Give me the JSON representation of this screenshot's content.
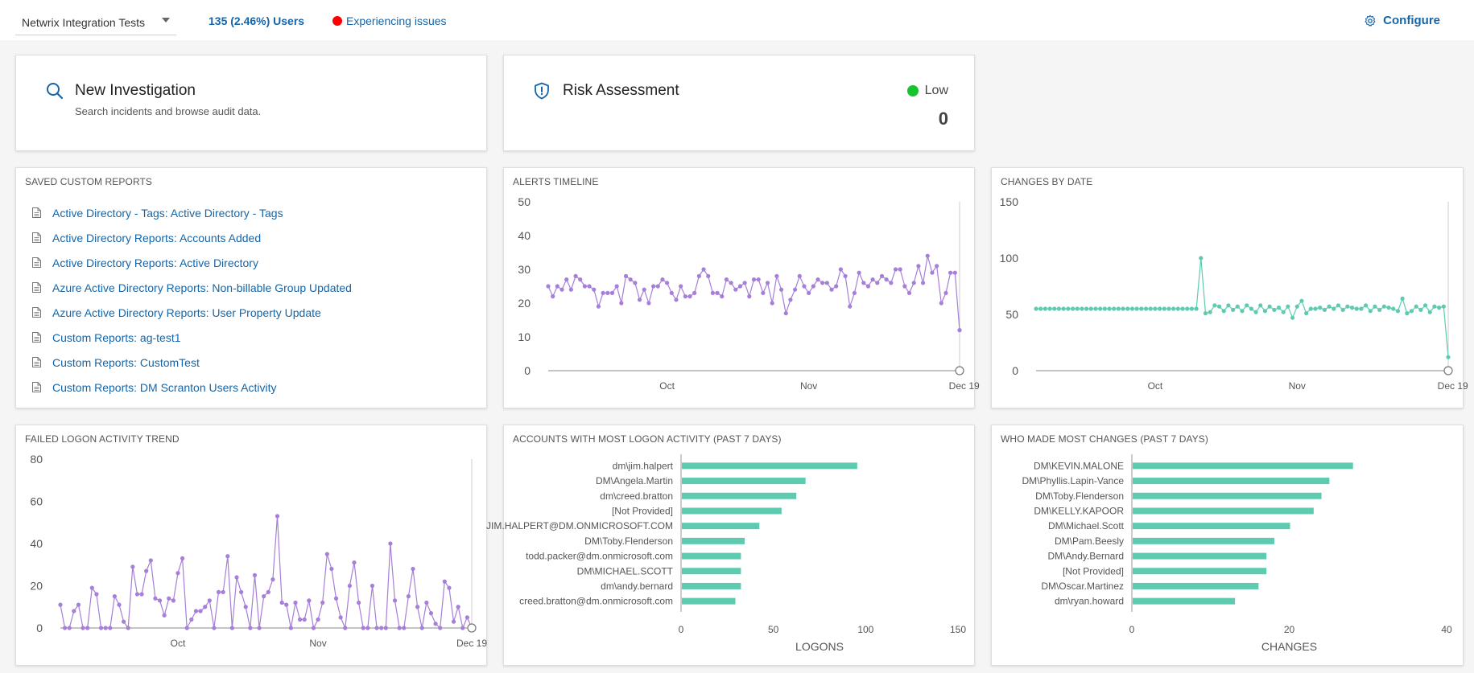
{
  "topbar": {
    "workspace": "Netwrix Integration Tests",
    "users": "135 (2.46%) Users",
    "status": "Experiencing issues",
    "status_color": "#ff0000",
    "configure": "Configure"
  },
  "investigation": {
    "title": "New Investigation",
    "subtitle": "Search incidents and browse audit data.",
    "icon": "search-icon"
  },
  "risk": {
    "title": "Risk Assessment",
    "level": "Low",
    "level_color": "#17c32e",
    "value": "0",
    "icon": "shield-icon"
  },
  "saved_reports": {
    "title": "SAVED CUSTOM REPORTS",
    "items": [
      "Active Directory - Tags: Active Directory - Tags",
      "Active Directory Reports: Accounts Added",
      "Active Directory Reports: Active Directory",
      "Azure Active Directory Reports: Non-billable Group Updated",
      "Azure Active Directory Reports: User Property Update",
      "Custom Reports: ag-test1",
      "Custom Reports: CustomTest",
      "Custom Reports: DM Scranton Users Activity"
    ]
  },
  "chart_data": [
    {
      "id": "alerts",
      "type": "line",
      "title": "ALERTS TIMELINE",
      "color": "#a57fd8",
      "ylim": [
        0,
        50
      ],
      "yticks": [
        0,
        10,
        20,
        30,
        40,
        50
      ],
      "xticks": [
        {
          "label": "Oct",
          "at": 26
        },
        {
          "label": "Nov",
          "at": 57
        },
        {
          "label": "Dec 19",
          "at": 91
        }
      ],
      "values": [
        25,
        22,
        25,
        24,
        27,
        24,
        28,
        27,
        25,
        25,
        24,
        19,
        23,
        23,
        23,
        25,
        20,
        28,
        27,
        26,
        21,
        24,
        20,
        25,
        25,
        27,
        26,
        23,
        21,
        25,
        22,
        22,
        23,
        28,
        30,
        28,
        23,
        23,
        22,
        27,
        26,
        24,
        25,
        26,
        22,
        27,
        27,
        23,
        26,
        20,
        28,
        24,
        17,
        21,
        24,
        28,
        25,
        23,
        25,
        27,
        26,
        26,
        24,
        25,
        30,
        28,
        19,
        23,
        29,
        26,
        25,
        27,
        26,
        28,
        27,
        26,
        30,
        30,
        25,
        23,
        26,
        31,
        26,
        34,
        29,
        31,
        20,
        23,
        29,
        29,
        12
      ],
      "end_marker": true
    },
    {
      "id": "changes",
      "type": "line",
      "title": "CHANGES BY DATE",
      "color": "#5ecbb0",
      "ylim": [
        0,
        150
      ],
      "yticks": [
        0,
        50,
        100,
        150
      ],
      "xticks": [
        {
          "label": "Oct",
          "at": 26
        },
        {
          "label": "Nov",
          "at": 57
        },
        {
          "label": "Dec 19",
          "at": 91
        }
      ],
      "values": [
        55,
        55,
        55,
        55,
        55,
        55,
        55,
        55,
        55,
        55,
        55,
        55,
        55,
        55,
        55,
        55,
        55,
        55,
        55,
        55,
        55,
        55,
        55,
        55,
        55,
        55,
        55,
        55,
        55,
        55,
        55,
        55,
        55,
        55,
        55,
        55,
        100,
        51,
        52,
        58,
        57,
        53,
        58,
        54,
        57,
        53,
        58,
        55,
        52,
        58,
        53,
        57,
        54,
        56,
        52,
        57,
        47,
        57,
        62,
        51,
        55,
        55,
        56,
        54,
        57,
        55,
        58,
        54,
        57,
        56,
        55,
        55,
        58,
        53,
        57,
        54,
        57,
        56,
        55,
        53,
        64,
        51,
        53,
        57,
        54,
        58,
        52,
        57,
        56,
        57,
        12
      ],
      "end_marker": true
    },
    {
      "id": "failed_logon",
      "type": "line",
      "title": "FAILED LOGON ACTIVITY TREND",
      "color": "#a57fd8",
      "ylim": [
        0,
        80
      ],
      "yticks": [
        0,
        20,
        40,
        60,
        80
      ],
      "xticks": [
        {
          "label": "Oct",
          "at": 26
        },
        {
          "label": "Nov",
          "at": 57
        },
        {
          "label": "Dec 19",
          "at": 91
        }
      ],
      "values": [
        11,
        0,
        0,
        8,
        11,
        0,
        0,
        19,
        16,
        0,
        0,
        0,
        15,
        11,
        3,
        0,
        29,
        16,
        16,
        27,
        32,
        14,
        13,
        6,
        14,
        13,
        26,
        33,
        0,
        4,
        8,
        8,
        10,
        13,
        0,
        17,
        17,
        34,
        0,
        24,
        17,
        10,
        0,
        25,
        0,
        15,
        17,
        23,
        53,
        12,
        11,
        0,
        12,
        4,
        4,
        13,
        0,
        4,
        12,
        35,
        28,
        14,
        5,
        0,
        20,
        31,
        12,
        0,
        0,
        20,
        0,
        0,
        0,
        40,
        13,
        0,
        0,
        15,
        28,
        10,
        0,
        12,
        7,
        2,
        0,
        22,
        19,
        3,
        10,
        0,
        5,
        0
      ],
      "end_marker": true
    },
    {
      "id": "logon_accounts",
      "type": "bar",
      "orientation": "horizontal",
      "title": "ACCOUNTS WITH MOST LOGON ACTIVITY (PAST 7 DAYS)",
      "color": "#5ecbb0",
      "xlabel": "LOGONS",
      "xlim": [
        0,
        150
      ],
      "xticks": [
        0,
        50,
        100,
        150
      ],
      "categories": [
        "dm\\jim.halpert",
        "DM\\Angela.Martin",
        "dm\\creed.bratton",
        "[Not Provided]",
        "JIM.HALPERT@DM.ONMICROSOFT.COM",
        "DM\\Toby.Flenderson",
        "todd.packer@dm.onmicrosoft.com",
        "DM\\MICHAEL.SCOTT",
        "dm\\andy.bernard",
        "creed.bratton@dm.onmicrosoft.com"
      ],
      "values": [
        95,
        67,
        62,
        54,
        42,
        34,
        32,
        32,
        32,
        29
      ]
    },
    {
      "id": "most_changes",
      "type": "bar",
      "orientation": "horizontal",
      "title": "WHO MADE MOST CHANGES (PAST 7 DAYS)",
      "color": "#5ecbb0",
      "xlabel": "CHANGES",
      "xlim": [
        0,
        40
      ],
      "xticks": [
        0,
        20,
        40
      ],
      "categories": [
        "DM\\KEVIN.MALONE",
        "DM\\Phyllis.Lapin-Vance",
        "DM\\Toby.Flenderson",
        "DM\\KELLY.KAPOOR",
        "DM\\Michael.Scott",
        "DM\\Pam.Beesly",
        "DM\\Andy.Bernard",
        "[Not Provided]",
        "DM\\Oscar.Martinez",
        "dm\\ryan.howard"
      ],
      "values": [
        28,
        25,
        24,
        23,
        20,
        18,
        17,
        17,
        16,
        13
      ]
    }
  ]
}
